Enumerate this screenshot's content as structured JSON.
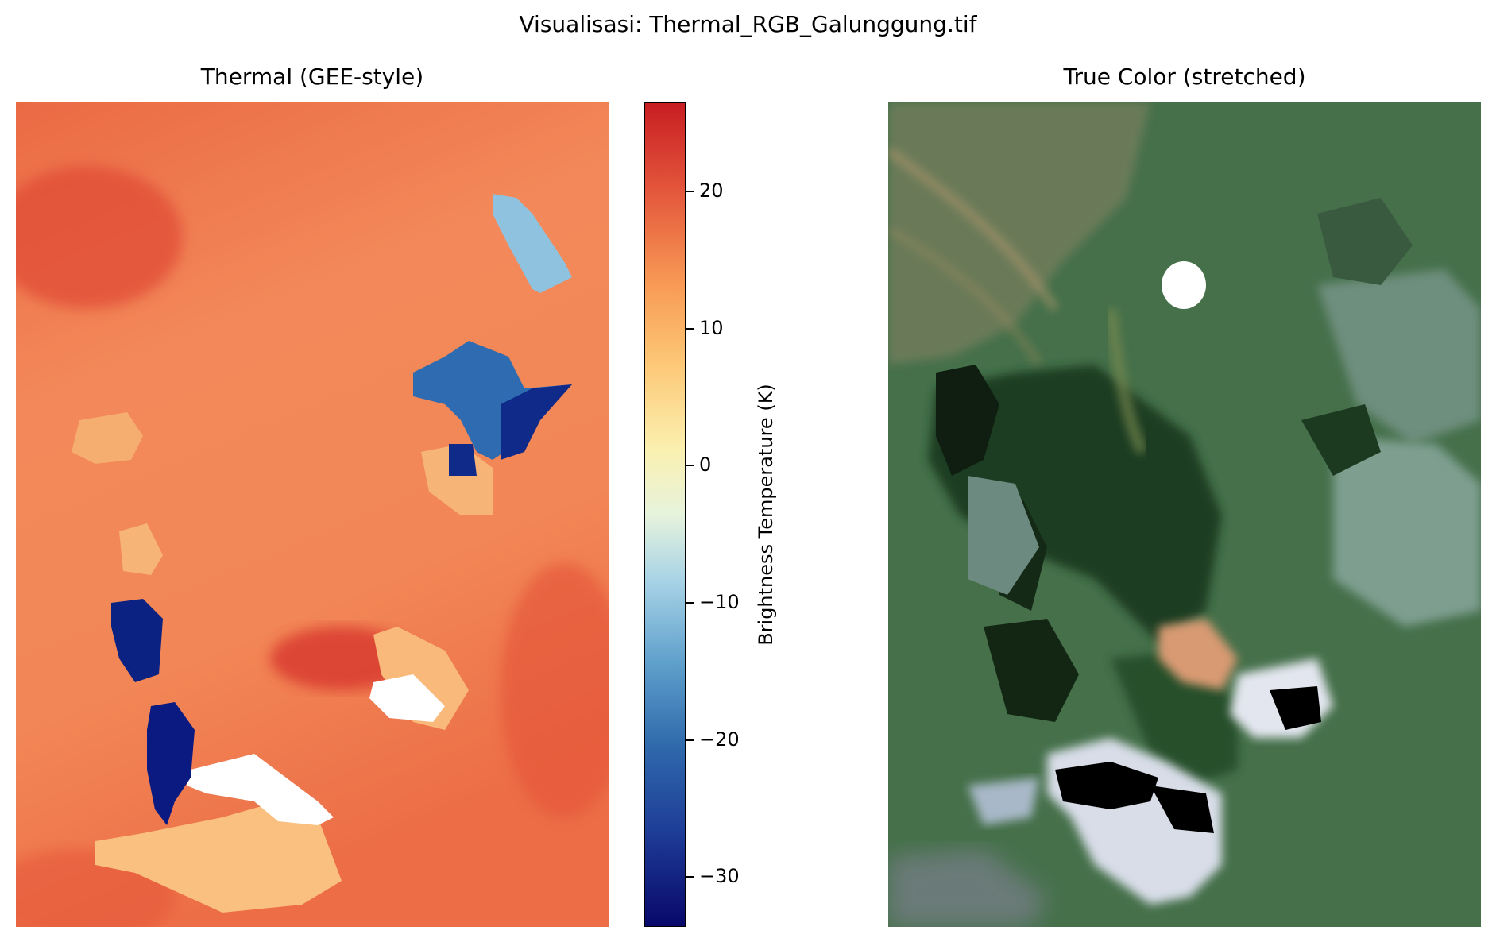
{
  "figure": {
    "title": "Visualisasi: Thermal_RGB_Galunggung.tif"
  },
  "thermal_panel": {
    "title": "Thermal (GEE-style)",
    "colormap": "RdYlBu_r",
    "colors": {
      "warm": "#f08450",
      "hot": "#d8382e",
      "cold": "#0a1a80",
      "cool": "#2e6bb0",
      "light": "#8fc2df",
      "nodata": "#ffffff"
    }
  },
  "colorbar": {
    "label": "Brightness Temperature (K)",
    "min": -34,
    "max": 26,
    "ticks": [
      {
        "value": 20,
        "label": "20"
      },
      {
        "value": 10,
        "label": "10"
      },
      {
        "value": 0,
        "label": "0"
      },
      {
        "value": -10,
        "label": "−10"
      },
      {
        "value": -20,
        "label": "−20"
      },
      {
        "value": -30,
        "label": "−30"
      }
    ]
  },
  "rgb_panel": {
    "title": "True Color (stretched)",
    "colors": {
      "forest": "#35603c",
      "dark-forest": "#142a16",
      "grey-green": "#6d8a80",
      "cloud": "#d8dde8",
      "shadow": "#000000",
      "bare": "#e0a078"
    }
  }
}
